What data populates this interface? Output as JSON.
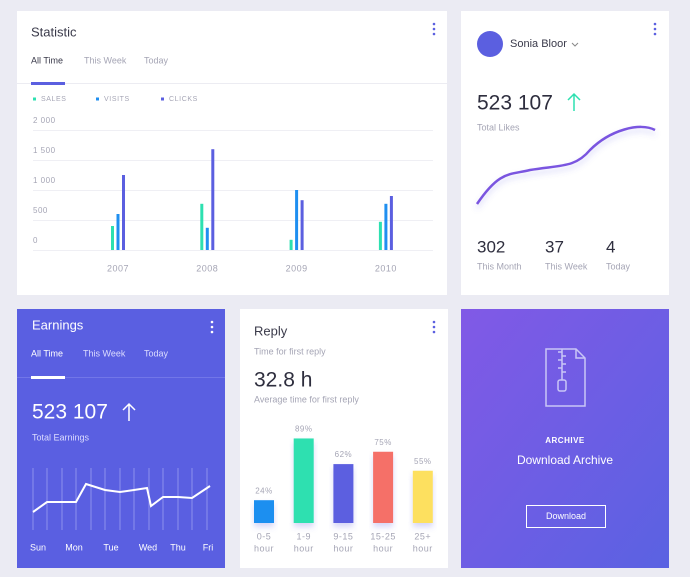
{
  "statistic": {
    "title": "Statistic",
    "tabs": [
      "All Time",
      "This Week",
      "Today"
    ],
    "chart_data": {
      "type": "bar",
      "categories": [
        "2007",
        "2008",
        "2009",
        "2010"
      ],
      "series": [
        {
          "name": "SALES",
          "color": "#2de0b0",
          "values": [
            400,
            770,
            170,
            470
          ]
        },
        {
          "name": "VISITS",
          "color": "#1f8ff0",
          "values": [
            600,
            370,
            1000,
            770
          ]
        },
        {
          "name": "CLICKS",
          "color": "#5b5fe0",
          "values": [
            1250,
            1680,
            830,
            900
          ]
        }
      ],
      "ylim": [
        0,
        2000
      ],
      "yticks": [
        0,
        500,
        {
          "value": 1000,
          "label": "1 000"
        },
        {
          "value": 1500,
          "label": "1 500"
        },
        {
          "value": 2000,
          "label": "2 000"
        }
      ],
      "grid": true
    }
  },
  "profile": {
    "name": "Sonia Bloor",
    "value": "523 107",
    "label": "Total Likes",
    "stats": [
      {
        "value": 302,
        "label": "This Month"
      },
      {
        "value": 37,
        "label": "This Week"
      },
      {
        "value": 4,
        "label": "Today"
      }
    ]
  },
  "earnings": {
    "title": "Earnings",
    "tabs": [
      "All Time",
      "This Week",
      "Today"
    ],
    "value": "523 107",
    "label": "Total Earnings",
    "days": [
      "Sun",
      "Mon",
      "Tue",
      "Wed",
      "Thu",
      "Fri"
    ]
  },
  "reply": {
    "title": "Reply",
    "subtitle": "Time for first reply",
    "value": "32.8 h",
    "caption": "Average time for first reply",
    "chart_data": {
      "type": "bar",
      "categories": [
        [
          "0-5",
          "hour"
        ],
        [
          "1-9",
          "hour"
        ],
        [
          "9-15",
          "hour"
        ],
        [
          "15-25",
          "hour"
        ],
        [
          "25+",
          "hour"
        ]
      ],
      "values": [
        24,
        89,
        62,
        75,
        55
      ],
      "value_labels": [
        "24%",
        "89%",
        "62%",
        "75%",
        "55%"
      ],
      "colors": [
        "#1f8ff0",
        "#2de0b0",
        "#5b5fe0",
        "#f57068",
        "#fde05e"
      ]
    }
  },
  "archive": {
    "heading": "ARCHIVE",
    "title": "Download Archive",
    "button": "Download"
  }
}
